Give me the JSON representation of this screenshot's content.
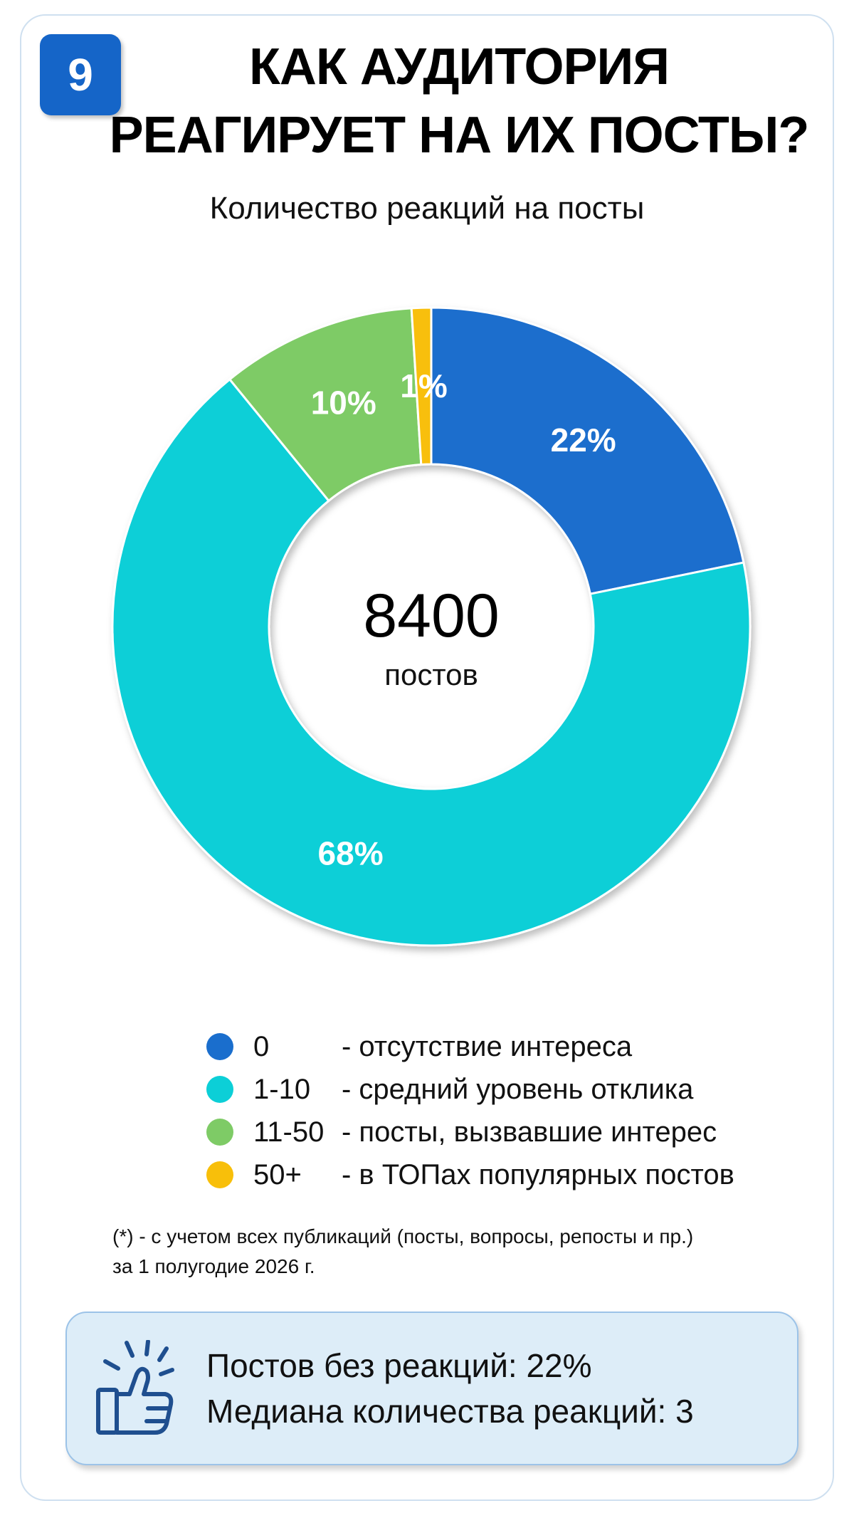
{
  "badge": "9",
  "title_lines": [
    "КАК АУДИТОРИЯ",
    "РЕАГИРУЕТ НА ИХ ПОСТЫ?"
  ],
  "chart_data": {
    "type": "pie",
    "title": "Количество реакций на посты",
    "center_value": "8400",
    "center_label": "постов",
    "categories": [
      "0",
      "1-10",
      "11-50",
      "50+"
    ],
    "values": [
      22,
      68,
      10,
      1
    ],
    "labels": [
      "22%",
      "68%",
      "10%",
      "1%"
    ],
    "colors": [
      "#1a6ecd",
      "#0ccfd7",
      "#7ecb66",
      "#f8bf0a"
    ],
    "legend_placement": "bottom"
  },
  "legend": [
    {
      "category": "0",
      "description": "- отсутствие интереса",
      "color": "#1a6ecd"
    },
    {
      "category": "1-10",
      "description": "- средний уровень отклика",
      "color": "#0ccfd7"
    },
    {
      "category": "11-50",
      "description": "- посты, вызвавшие интерес",
      "color": "#7ecb66"
    },
    {
      "category": "50+",
      "description": "- в ТОПах популярных постов",
      "color": "#f8bf0a"
    }
  ],
  "footnote_lines": [
    "(*) - с учетом всех публикаций (посты, вопросы, репосты и пр.)",
    "за 1 полугодие 2026 г."
  ],
  "summary": {
    "icon": "thumbs-up-icon",
    "lines": [
      "Постов без реакций: 22%",
      "Медиана количества реакций: 3"
    ]
  }
}
